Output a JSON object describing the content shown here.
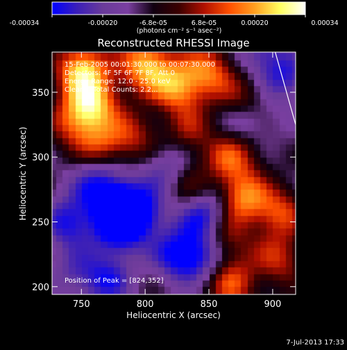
{
  "colorbar": {
    "tick_labels": [
      "-0.00034",
      "-0.00020",
      "-6.8e-05",
      "6.8e-05",
      "0.00020",
      "0.00034"
    ],
    "unit_label": "(photons cm⁻² s⁻¹ asec⁻²)",
    "colormap": [
      "#0000ff",
      "#3b1fb8",
      "#6a3b9a",
      "#7a3fa0",
      "#100010",
      "#3a0000",
      "#b01000",
      "#ff5000",
      "#ffa020",
      "#ffff60",
      "#ffffff"
    ]
  },
  "plot": {
    "title": "Reconstructed RHESSI Image",
    "xlabel": "Heliocentric X (arcsec)",
    "ylabel": "Heliocentric Y (arcsec)",
    "overlay_lines": [
      "15-Feb-2005 00:01:30.000 to 00:07:30.000",
      "Detectors: 4F 5F 6F 7F 8F, Att 0",
      "Energy Range: 12.0 - 25.0 keV",
      "Clean    Total Counts: 2.2..."
    ],
    "peak_text": "Position of Peak = [824,352]",
    "limb_color": "#ffffff"
  },
  "chart_data": {
    "type": "heatmap",
    "title": "Reconstructed RHESSI Image",
    "xlabel": "Heliocentric X (arcsec)",
    "ylabel": "Heliocentric Y (arcsec)",
    "xlim": [
      727,
      918
    ],
    "ylim": [
      194,
      381
    ],
    "x_ticks": [
      750,
      800,
      850,
      900
    ],
    "y_ticks": [
      200,
      250,
      300,
      350
    ],
    "zlim": [
      -0.00034,
      0.00034
    ],
    "grid": false,
    "peak": [
      824,
      352
    ],
    "limb": [
      [
        902,
        381
      ],
      [
        918,
        325
      ]
    ],
    "blobs": [
      {
        "x": 750,
        "y": 368,
        "v": 0.00034
      },
      {
        "x": 760,
        "y": 343,
        "v": 0.00028
      },
      {
        "x": 800,
        "y": 372,
        "v": 0.00033
      },
      {
        "x": 824,
        "y": 352,
        "v": 0.00034
      },
      {
        "x": 850,
        "y": 368,
        "v": 0.00024
      },
      {
        "x": 878,
        "y": 345,
        "v": 0.00018
      },
      {
        "x": 792,
        "y": 318,
        "v": 0.00016
      },
      {
        "x": 835,
        "y": 322,
        "v": 0.00014
      },
      {
        "x": 745,
        "y": 328,
        "v": 0.00022
      },
      {
        "x": 765,
        "y": 308,
        "v": 0.0002
      },
      {
        "x": 868,
        "y": 300,
        "v": 0.00022
      },
      {
        "x": 898,
        "y": 300,
        "v": 0.00014
      },
      {
        "x": 905,
        "y": 258,
        "v": 0.0002
      },
      {
        "x": 876,
        "y": 268,
        "v": 0.00026
      },
      {
        "x": 860,
        "y": 238,
        "v": 0.0002
      },
      {
        "x": 905,
        "y": 222,
        "v": 0.00018
      },
      {
        "x": 868,
        "y": 203,
        "v": 0.00022
      },
      {
        "x": 835,
        "y": 278,
        "v": 0.00012
      },
      {
        "x": 790,
        "y": 240,
        "v": 8e-05
      },
      {
        "x": 775,
        "y": 265,
        "v": -0.0003
      },
      {
        "x": 795,
        "y": 255,
        "v": -0.00028
      },
      {
        "x": 780,
        "y": 240,
        "v": -0.00024
      },
      {
        "x": 740,
        "y": 250,
        "v": -0.00022
      },
      {
        "x": 825,
        "y": 225,
        "v": -0.00022
      },
      {
        "x": 848,
        "y": 255,
        "v": -0.00026
      },
      {
        "x": 845,
        "y": 225,
        "v": -0.0002
      },
      {
        "x": 770,
        "y": 205,
        "v": -0.00018
      },
      {
        "x": 900,
        "y": 300,
        "v": -0.00014
      },
      {
        "x": 880,
        "y": 330,
        "v": -0.00016
      },
      {
        "x": 760,
        "y": 285,
        "v": -0.00016
      },
      {
        "x": 815,
        "y": 290,
        "v": -0.00014
      },
      {
        "x": 820,
        "y": 340,
        "v": -8e-05
      },
      {
        "x": 890,
        "y": 380,
        "v": -0.00016
      },
      {
        "x": 910,
        "y": 360,
        "v": -0.00018
      },
      {
        "x": 745,
        "y": 210,
        "v": -0.00012
      }
    ]
  },
  "footer": {
    "date_stamp": "7-Jul-2013 17:33"
  }
}
